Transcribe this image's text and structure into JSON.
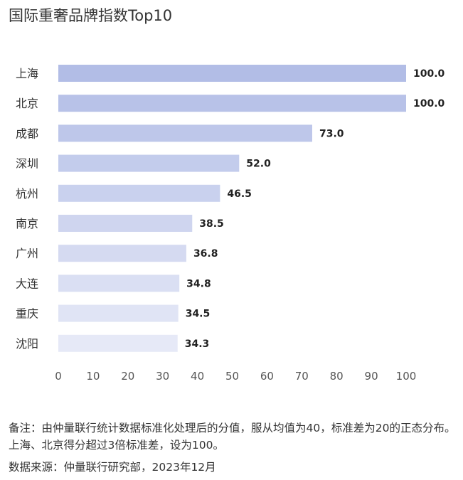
{
  "chart_data": {
    "type": "bar",
    "orientation": "horizontal",
    "title": "国际重奢品牌指数Top10",
    "categories": [
      "上海",
      "北京",
      "成都",
      "深圳",
      "杭州",
      "南京",
      "广州",
      "大连",
      "重庆",
      "沈阳"
    ],
    "values": [
      100.0,
      100.0,
      73.0,
      52.0,
      46.5,
      38.5,
      36.8,
      34.8,
      34.5,
      34.3
    ],
    "value_labels": [
      "100.0",
      "100.0",
      "73.0",
      "52.0",
      "46.5",
      "38.5",
      "36.8",
      "34.8",
      "34.5",
      "34.3"
    ],
    "xlim": [
      0,
      100
    ],
    "xticks": [
      "0",
      "10",
      "20",
      "30",
      "40",
      "50",
      "60",
      "70",
      "80",
      "90",
      "100"
    ],
    "bar_color_start": "#b2bde6",
    "bar_color_end": "#e6e9f7",
    "grid": false,
    "legend": "none"
  },
  "footnote": "备注：由仲量联行统计数据标准化处理后的分值，服从均值为40，标准差为20的正态分布。上海、北京得分超过3倍标准差，设为100。",
  "source": "数据来源：仲量联行研究部，2023年12月"
}
